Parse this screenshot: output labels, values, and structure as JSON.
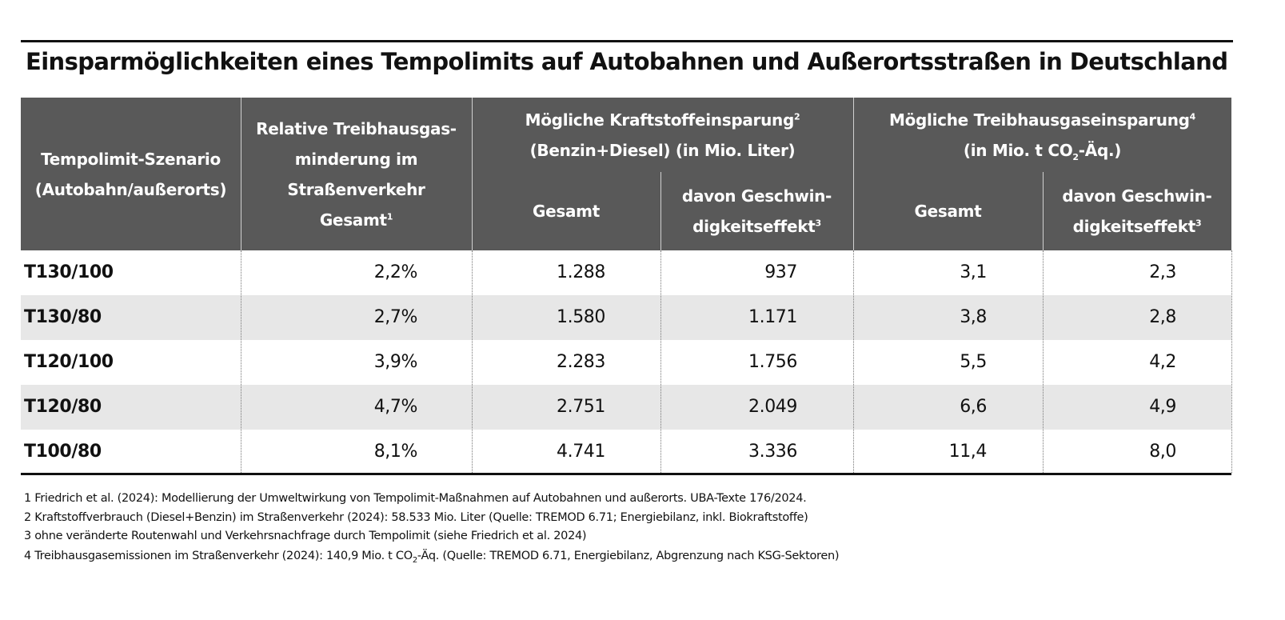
{
  "title": "Einsparmöglichkeiten eines Tempolimits auf Autobahnen und Außerortsstraßen in Deutschland",
  "header": {
    "scenario": {
      "line1": "Tempolimit-Szenario",
      "line2": "(Autobahn/außerorts)"
    },
    "relative": {
      "line1": "Relative Treibhausgas-",
      "line2": "minderung im",
      "line3": "Straßenverkehr",
      "line4": "Gesamt",
      "sup": "1"
    },
    "fuel": {
      "line1": "Mögliche Kraftstoffeinsparung",
      "sup": "2",
      "line2": "(Benzin+Diesel) (in Mio. Liter)"
    },
    "ghg": {
      "line1": "Mögliche Treibhausgaseinsparung",
      "sup": "4",
      "line2a": "(in Mio. t CO",
      "sub": "2",
      "line2b": "-Äq.)"
    },
    "sub_total": "Gesamt",
    "sub_speed_line1": "davon Geschwin-",
    "sub_speed_line2": "digkeitseffekt",
    "sub_speed_sup": "3"
  },
  "rows": [
    {
      "scenario": "T130/100",
      "relative": "2,2%",
      "fuel_total": "1.288",
      "fuel_speed": "937",
      "ghg_total": "3,1",
      "ghg_speed": "2,3"
    },
    {
      "scenario": "T130/80",
      "relative": "2,7%",
      "fuel_total": "1.580",
      "fuel_speed": "1.171",
      "ghg_total": "3,8",
      "ghg_speed": "2,8"
    },
    {
      "scenario": "T120/100",
      "relative": "3,9%",
      "fuel_total": "2.283",
      "fuel_speed": "1.756",
      "ghg_total": "5,5",
      "ghg_speed": "4,2"
    },
    {
      "scenario": "T120/80",
      "relative": "4,7%",
      "fuel_total": "2.751",
      "fuel_speed": "2.049",
      "ghg_total": "6,6",
      "ghg_speed": "4,9"
    },
    {
      "scenario": "T100/80",
      "relative": "8,1%",
      "fuel_total": "4.741",
      "fuel_speed": "3.336",
      "ghg_total": "11,4",
      "ghg_speed": "8,0"
    }
  ],
  "footnotes": {
    "f1": "1 Friedrich et al. (2024): Modellierung der Umweltwirkung von Tempolimit-Maßnahmen auf Autobahnen und außerorts. UBA-Texte 176/2024.",
    "f2": "2 Kraftstoffverbrauch (Diesel+Benzin) im Straßenverkehr (2024): 58.533 Mio. Liter (Quelle: TREMOD 6.71; Energiebilanz, inkl. Biokraftstoffe)",
    "f3": "3 ohne veränderte Routenwahl und Verkehrsnachfrage durch Tempolimit (siehe Friedrich et al. 2024)",
    "f4a": "4 Treibhausgasemissionen im Straßenverkehr (2024): 140,9 Mio. t CO",
    "f4sub": "2",
    "f4b": "-Äq. (Quelle: TREMOD 6.71, Energiebilanz, Abgrenzung nach KSG-Sektoren)"
  },
  "colors": {
    "header_bg": "#595959",
    "alt_row": "#e7e7e7",
    "text": "#111111"
  }
}
